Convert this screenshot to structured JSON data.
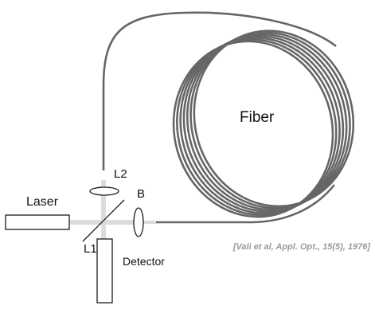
{
  "labels": {
    "fiber": "Fiber",
    "laser": "Laser",
    "l1": "L1",
    "l2": "L2",
    "b": "B",
    "detector": "Detector"
  },
  "citation": "[Vali et al, Appl. Opt., 15(5), 1976]",
  "coil": {
    "turns": 7
  },
  "colors": {
    "fiber": "#666666",
    "beam": "#dcdcdc",
    "outline": "#1a1a1a",
    "citation": "#9a9a9a"
  }
}
